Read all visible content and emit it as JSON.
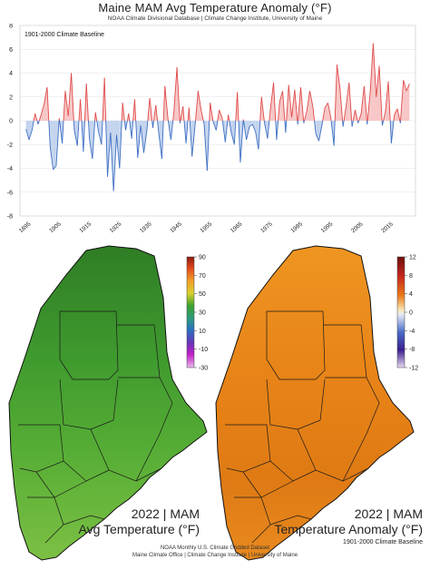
{
  "header": {
    "title": "Maine MAM Avg Temperature Anomaly (°F)",
    "subtitle": "NOAA Climate Divisional Database | Climate Change Institute, University of Maine"
  },
  "chart_data": {
    "type": "area",
    "legend_text": "1901-2000 Climate Baseline",
    "ylim": [
      -8,
      8
    ],
    "yticks": [
      "8",
      "6",
      "4",
      "2",
      "0",
      "-2",
      "-4",
      "-6",
      "-8"
    ],
    "xticks": [
      "1895",
      "1905",
      "1915",
      "1925",
      "1935",
      "1945",
      "1955",
      "1965",
      "1975",
      "1985",
      "1995",
      "2005",
      "2015"
    ],
    "positive_color": "#e04a4a",
    "negative_color": "#3d6fc4",
    "positive_fill": "#f7c6c6",
    "negative_fill": "#c4d4ee",
    "x": [
      1895,
      1896,
      1897,
      1898,
      1899,
      1900,
      1901,
      1902,
      1903,
      1904,
      1905,
      1906,
      1907,
      1908,
      1909,
      1910,
      1911,
      1912,
      1913,
      1914,
      1915,
      1916,
      1917,
      1918,
      1919,
      1920,
      1921,
      1922,
      1923,
      1924,
      1925,
      1926,
      1927,
      1928,
      1929,
      1930,
      1931,
      1932,
      1933,
      1934,
      1935,
      1936,
      1937,
      1938,
      1939,
      1940,
      1941,
      1942,
      1943,
      1944,
      1945,
      1946,
      1947,
      1948,
      1949,
      1950,
      1951,
      1952,
      1953,
      1954,
      1955,
      1956,
      1957,
      1958,
      1959,
      1960,
      1961,
      1962,
      1963,
      1964,
      1965,
      1966,
      1967,
      1968,
      1969,
      1970,
      1971,
      1972,
      1973,
      1974,
      1975,
      1976,
      1977,
      1978,
      1979,
      1980,
      1981,
      1982,
      1983,
      1984,
      1985,
      1986,
      1987,
      1988,
      1989,
      1990,
      1991,
      1992,
      1993,
      1994,
      1995,
      1996,
      1997,
      1998,
      1999,
      2000,
      2001,
      2002,
      2003,
      2004,
      2005,
      2006,
      2007,
      2008,
      2009,
      2010,
      2011,
      2012,
      2013,
      2014,
      2015,
      2016,
      2017,
      2018,
      2019,
      2020,
      2021,
      2022
    ],
    "values": [
      -0.7,
      -1.6,
      -0.8,
      0.6,
      -0.3,
      0.5,
      1.4,
      2.8,
      -2.2,
      -4.1,
      -3.8,
      0.2,
      -1.9,
      2.5,
      0.4,
      4.0,
      -0.8,
      -2.1,
      1.8,
      -2.6,
      3.1,
      -1.5,
      -3.2,
      0.7,
      -0.9,
      -2.0,
      3.6,
      -4.7,
      -1.0,
      -5.9,
      -1.2,
      -4.0,
      1.5,
      -0.8,
      0.6,
      -1.5,
      1.8,
      -3.1,
      -0.4,
      -2.7,
      -0.9,
      1.9,
      -0.6,
      1.3,
      -1.1,
      -3.2,
      2.9,
      0.2,
      -1.6,
      0.8,
      4.5,
      -0.2,
      1.2,
      -1.9,
      1.1,
      -3.0,
      -0.4,
      2.5,
      0.9,
      -0.3,
      -4.2,
      1.5,
      -0.1,
      -0.8,
      0.9,
      0.2,
      -1.8,
      0.5,
      -1.0,
      -2.0,
      2.4,
      -3.5,
      0.1,
      -1.6,
      -0.5,
      -0.3,
      -0.9,
      -2.4,
      2.0,
      -0.2,
      -1.5,
      1.1,
      3.2,
      -1.6,
      1.6,
      2.5,
      -1.0,
      3.0,
      0.3,
      2.6,
      -0.3,
      2.8,
      -0.2,
      0.8,
      2.5,
      1.2,
      -1.1,
      -1.7,
      -0.4,
      1.1,
      1.5,
      0.2,
      -2.1,
      4.7,
      2.7,
      -0.5,
      1.2,
      3.2,
      -0.5,
      0.9,
      -0.2,
      0.6,
      2.9,
      -0.3,
      2.4,
      6.5,
      2.0,
      4.6,
      -0.4,
      0.7,
      3.3,
      -1.9,
      0.5,
      1.0,
      -0.2,
      3.4,
      2.5,
      3.1
    ]
  },
  "left_map": {
    "year_label": "2022 | MAM",
    "var_label": "Avg Temperature (°F)",
    "colorbar_ticks": [
      "90",
      "70",
      "50",
      "30",
      "10",
      "-10",
      "-30"
    ]
  },
  "right_map": {
    "year_label": "2022 | MAM",
    "var_label": "Temperature Anomaly (°F)",
    "baseline": "1901-2000 Climate Baseline",
    "colorbar_ticks": [
      "12",
      "8",
      "4",
      "0",
      "-4",
      "-8",
      "-12"
    ]
  },
  "footer": {
    "line1": "NOAA Monthly U.S. Climate Gridded Dataset",
    "line2": "Maine Climate Office | Climate Change Institute | University of Maine"
  }
}
